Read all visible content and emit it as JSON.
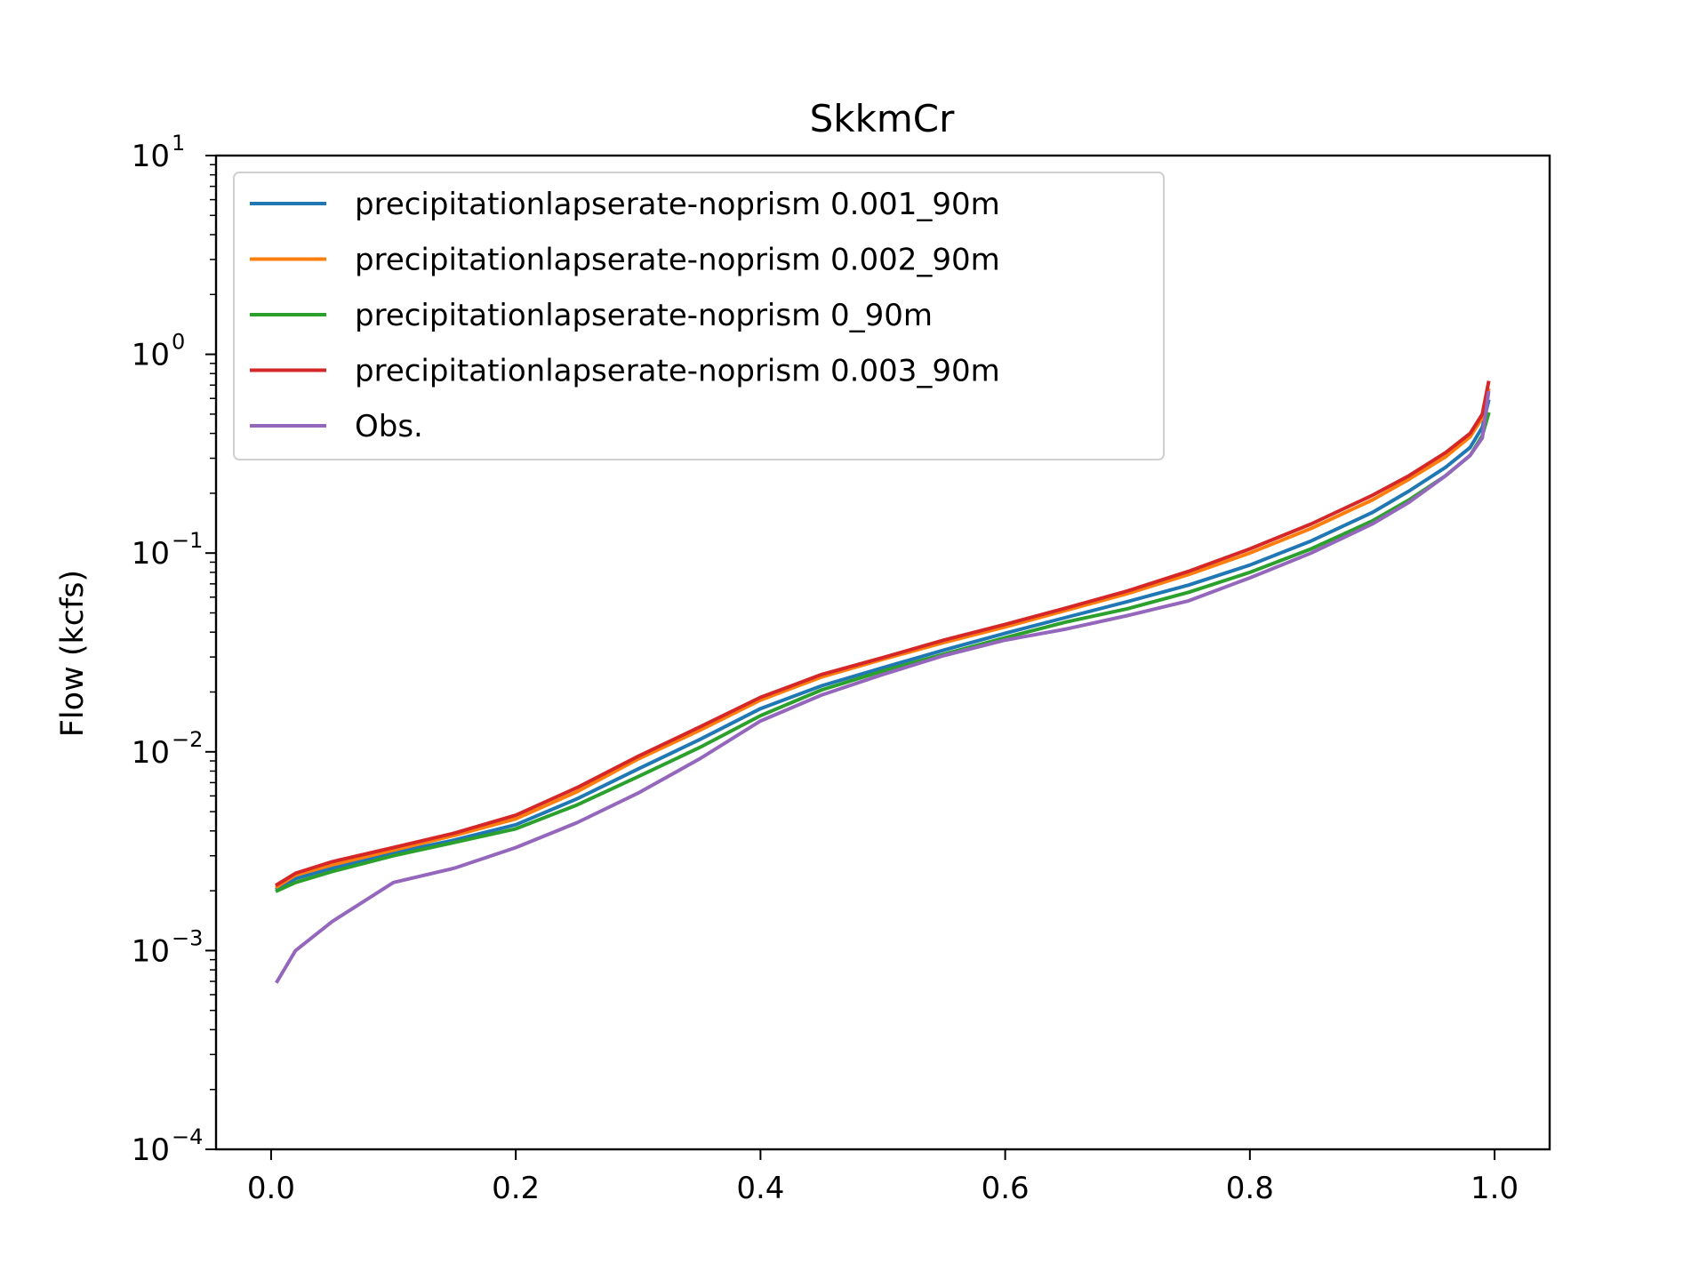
{
  "chart_data": {
    "type": "line",
    "title": "SkkmCr",
    "xlabel": "",
    "ylabel": "Flow (kcfs)",
    "xlim": [
      -0.045,
      1.045
    ],
    "ylim": [
      0.0001,
      10
    ],
    "yscale": "log",
    "grid": false,
    "legend_position": "top-left",
    "x_ticks": [
      {
        "value": 0.0,
        "label": "0.0"
      },
      {
        "value": 0.2,
        "label": "0.2"
      },
      {
        "value": 0.4,
        "label": "0.4"
      },
      {
        "value": 0.6,
        "label": "0.6"
      },
      {
        "value": 0.8,
        "label": "0.8"
      },
      {
        "value": 1.0,
        "label": "1.0"
      }
    ],
    "y_ticks": [
      {
        "value": 10,
        "base": "10",
        "exp": "1"
      },
      {
        "value": 1,
        "base": "10",
        "exp": "0"
      },
      {
        "value": 0.1,
        "base": "10",
        "exp": "−1"
      },
      {
        "value": 0.01,
        "base": "10",
        "exp": "−2"
      },
      {
        "value": 0.001,
        "base": "10",
        "exp": "−3"
      },
      {
        "value": 0.0001,
        "base": "10",
        "exp": "−4"
      }
    ],
    "x": [
      0.005,
      0.02,
      0.05,
      0.1,
      0.15,
      0.2,
      0.25,
      0.3,
      0.35,
      0.4,
      0.45,
      0.5,
      0.55,
      0.6,
      0.65,
      0.7,
      0.75,
      0.8,
      0.85,
      0.9,
      0.93,
      0.96,
      0.98,
      0.99,
      0.995
    ],
    "series": [
      {
        "name": "precipitationlapserate-noprism 0.001_90m",
        "color": "#1f77b4",
        "values": [
          0.00205,
          0.0023,
          0.0026,
          0.0031,
          0.0036,
          0.0043,
          0.0058,
          0.0082,
          0.0115,
          0.0165,
          0.0215,
          0.0265,
          0.0325,
          0.0395,
          0.0475,
          0.057,
          0.069,
          0.087,
          0.115,
          0.16,
          0.205,
          0.27,
          0.34,
          0.43,
          0.58
        ]
      },
      {
        "name": "precipitationlapserate-noprism 0.002_90m",
        "color": "#ff7f0e",
        "values": [
          0.0021,
          0.0024,
          0.0027,
          0.0032,
          0.0038,
          0.0046,
          0.0063,
          0.0092,
          0.0128,
          0.0182,
          0.0238,
          0.0292,
          0.0355,
          0.0425,
          0.0515,
          0.0625,
          0.078,
          0.1,
          0.133,
          0.185,
          0.235,
          0.305,
          0.385,
          0.48,
          0.66
        ]
      },
      {
        "name": "precipitationlapserate-noprism 0_90m",
        "color": "#2ca02c",
        "values": [
          0.002,
          0.0022,
          0.0025,
          0.003,
          0.0035,
          0.0041,
          0.0054,
          0.0075,
          0.0105,
          0.0152,
          0.0205,
          0.0255,
          0.031,
          0.0375,
          0.045,
          0.0525,
          0.0635,
          0.08,
          0.105,
          0.145,
          0.185,
          0.245,
          0.31,
          0.39,
          0.5
        ]
      },
      {
        "name": "precipitationlapserate-noprism 0.003_90m",
        "color": "#d62728",
        "values": [
          0.00215,
          0.00245,
          0.0028,
          0.0033,
          0.0039,
          0.0048,
          0.0066,
          0.0095,
          0.0133,
          0.0188,
          0.0245,
          0.0298,
          0.0365,
          0.0438,
          0.053,
          0.0645,
          0.081,
          0.105,
          0.14,
          0.195,
          0.245,
          0.32,
          0.4,
          0.5,
          0.72
        ]
      },
      {
        "name": "Obs.",
        "color": "#9467bd",
        "values": [
          0.0007,
          0.001,
          0.0014,
          0.0022,
          0.0026,
          0.0033,
          0.0044,
          0.0062,
          0.0092,
          0.0143,
          0.0193,
          0.0245,
          0.0305,
          0.0365,
          0.0415,
          0.0485,
          0.0575,
          0.075,
          0.1,
          0.14,
          0.18,
          0.245,
          0.31,
          0.38,
          0.64
        ]
      }
    ]
  }
}
